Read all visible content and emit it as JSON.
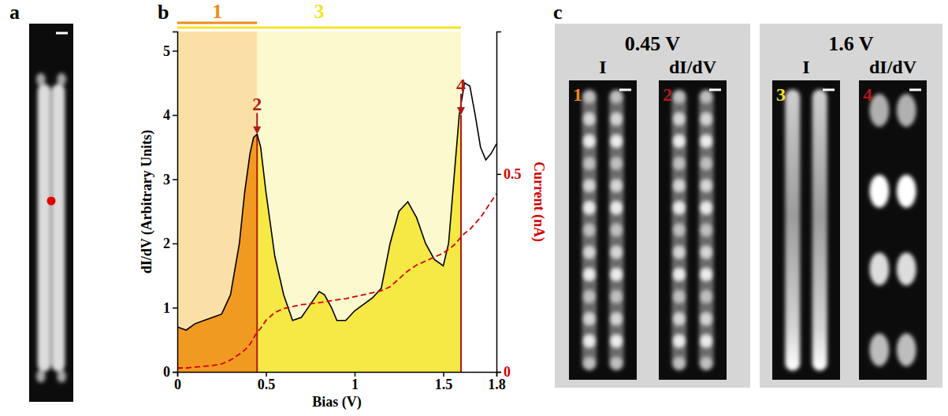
{
  "chart_data": {
    "type": "line",
    "xlabel": "Bias (V)",
    "ylabel": "dI/dV (Arbitrary Units)",
    "y2label": "Current (nA)",
    "x": [
      0,
      0.05,
      0.1,
      0.15,
      0.2,
      0.25,
      0.3,
      0.35,
      0.38,
      0.41,
      0.43,
      0.45,
      0.47,
      0.5,
      0.55,
      0.6,
      0.65,
      0.7,
      0.75,
      0.8,
      0.83,
      0.87,
      0.9,
      0.95,
      1,
      1.05,
      1.1,
      1.15,
      1.2,
      1.25,
      1.3,
      1.35,
      1.4,
      1.45,
      1.5,
      1.53,
      1.56,
      1.59,
      1.62,
      1.65,
      1.68,
      1.71,
      1.74,
      1.77,
      1.8
    ],
    "series": [
      {
        "color": "#000000",
        "line_style": "solid",
        "values": [
          0.7,
          0.65,
          0.75,
          0.8,
          0.85,
          0.9,
          1.2,
          2.0,
          2.8,
          3.4,
          3.65,
          3.7,
          3.5,
          2.8,
          1.8,
          1.2,
          0.8,
          0.85,
          1.05,
          1.25,
          1.2,
          1.0,
          0.8,
          0.8,
          0.95,
          1.05,
          1.15,
          1.3,
          2.0,
          2.5,
          2.65,
          2.4,
          2.0,
          1.75,
          1.65,
          2.0,
          3.0,
          4.0,
          4.5,
          4.45,
          4.0,
          3.5,
          3.3,
          3.4,
          3.55
        ]
      },
      {
        "color": "#d40000",
        "line_style": "dashed",
        "axis": "y2",
        "values": [
          0.01,
          0.01,
          0.012,
          0.014,
          0.016,
          0.02,
          0.03,
          0.045,
          0.055,
          0.07,
          0.085,
          0.1,
          0.11,
          0.13,
          0.15,
          0.16,
          0.165,
          0.17,
          0.172,
          0.175,
          0.177,
          0.18,
          0.182,
          0.185,
          0.19,
          0.195,
          0.2,
          0.205,
          0.215,
          0.235,
          0.255,
          0.27,
          0.28,
          0.29,
          0.3,
          0.31,
          0.32,
          0.335,
          0.35,
          0.36,
          0.375,
          0.39,
          0.41,
          0.43,
          0.45
        ]
      }
    ],
    "xlim": [
      0,
      1.8
    ],
    "xticks": [
      0,
      0.5,
      1,
      1.5,
      1.8
    ],
    "ylim": [
      0,
      5.3
    ],
    "yticks": [
      0,
      1,
      2,
      3,
      4,
      5
    ],
    "y2lim": [
      0,
      0.86
    ],
    "y2ticks": [
      0,
      0.5
    ],
    "regions": [
      {
        "label": "1",
        "range": [
          0,
          0.45
        ],
        "color": "#f08a1c"
      },
      {
        "label": "3",
        "range": [
          0,
          1.6
        ],
        "color": "#f4e426"
      }
    ],
    "annotations": [
      {
        "label": "2",
        "x": 0.45,
        "color": "#b01818"
      },
      {
        "label": "4",
        "x": 1.6,
        "color": "#b01818"
      }
    ]
  },
  "figure": {
    "panel_letters": [
      "a",
      "b",
      "c"
    ],
    "image_groups": [
      {
        "title": "0.45 V",
        "images": [
          {
            "label": "1",
            "channel": "I",
            "color": "#e8821e"
          },
          {
            "label": "2",
            "channel": "dI/dV",
            "color": "#b01818"
          }
        ]
      },
      {
        "title": "1.6 V",
        "images": [
          {
            "label": "3",
            "channel": "I",
            "color": "#f0e028"
          },
          {
            "label": "4",
            "channel": "dI/dV",
            "color": "#b01818"
          }
        ]
      }
    ]
  }
}
